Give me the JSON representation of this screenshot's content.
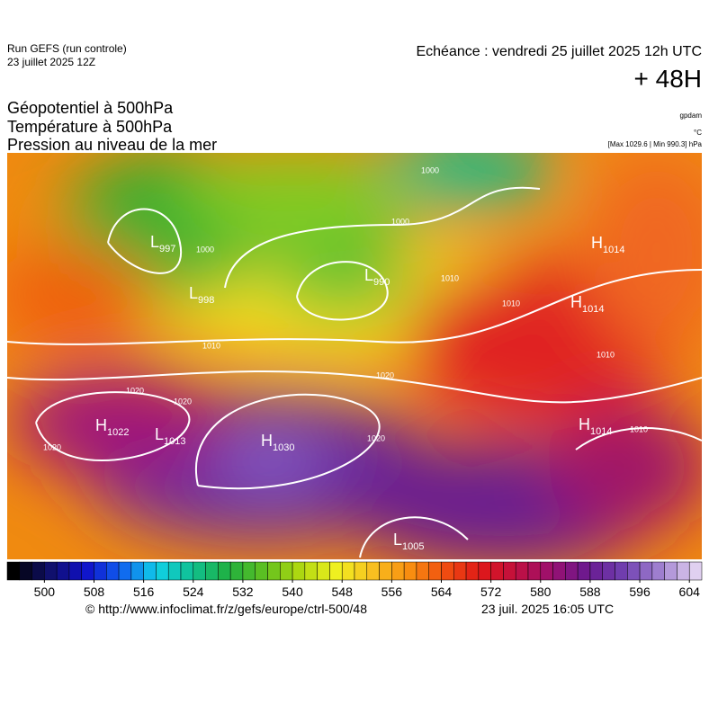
{
  "header": {
    "run": "Run GEFS (run controle)",
    "run_date": "23 juillet 2025 12Z",
    "valid": "Echéance : vendredi 25 juillet 2025 12h UTC",
    "lead": "+ 48H"
  },
  "titles": [
    "Géopotentiel à 500hPa",
    "Température à 500hPa",
    "Pression au niveau de la mer"
  ],
  "units": [
    "gpdam",
    "°C",
    "[Max 1029.6 | Min 990.3] hPa"
  ],
  "centers": [
    {
      "letter": "L",
      "value": "997"
    },
    {
      "letter": "L",
      "value": "998"
    },
    {
      "letter": "L",
      "value": "990"
    },
    {
      "letter": "H",
      "value": "1014"
    },
    {
      "letter": "H",
      "value": "1014"
    },
    {
      "letter": "H",
      "value": "1022"
    },
    {
      "letter": "L",
      "value": "1013"
    },
    {
      "letter": "H",
      "value": "1030"
    },
    {
      "letter": "H",
      "value": "1014"
    },
    {
      "letter": "L",
      "value": "1005"
    }
  ],
  "contour_labels": [
    "1000",
    "1000",
    "1000",
    "1010",
    "1010",
    "1010",
    "1020",
    "1020",
    "1020",
    "1020",
    "1020",
    "1010",
    "1010"
  ],
  "colorbar": {
    "range": [
      494,
      606
    ],
    "ticks": [
      500,
      508,
      516,
      524,
      532,
      540,
      548,
      556,
      564,
      572,
      580,
      588,
      596,
      604
    ]
  },
  "footer": {
    "url": "© http://www.infoclimat.fr/z/gefs/europe/ctrl-500/48",
    "time": "23 juil. 2025 16:05 UTC"
  }
}
